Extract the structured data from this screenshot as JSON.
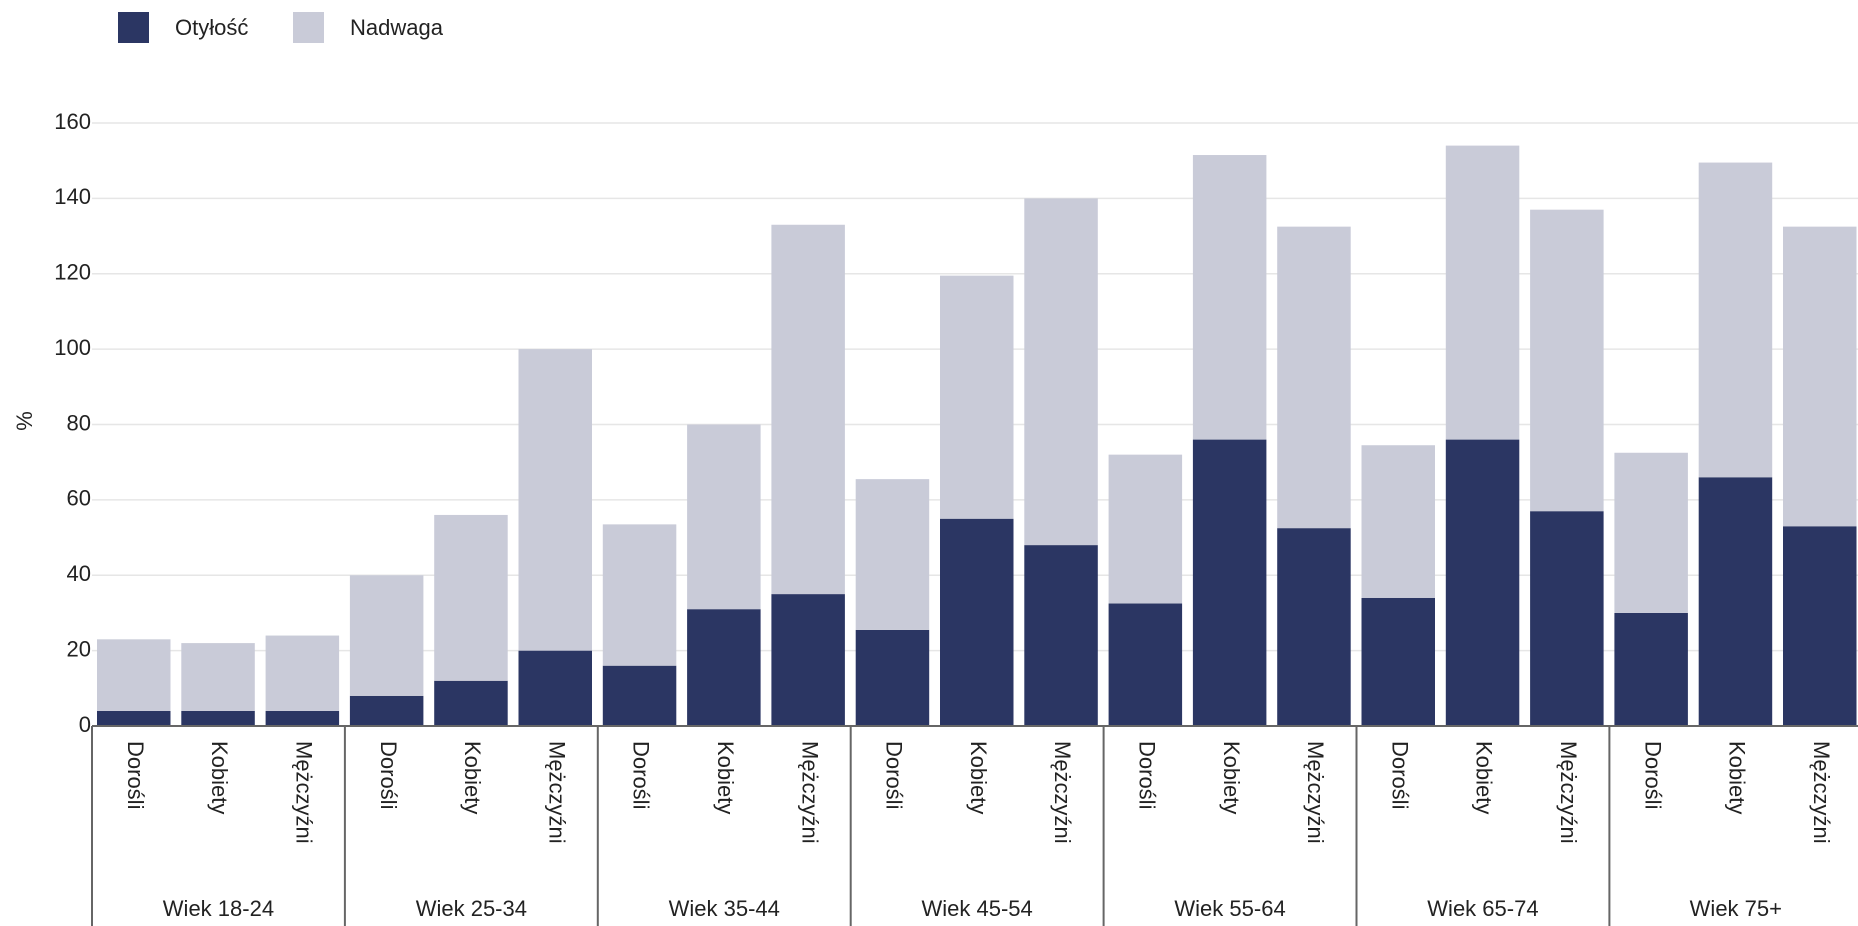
{
  "chart_data": {
    "type": "stacked_bar",
    "y_label": "%",
    "groups": [
      "Wiek 18-24",
      "Wiek 25-34",
      "Wiek 35-44",
      "Wiek 45-54",
      "Wiek 55-64",
      "Wiek 65-74",
      "Wiek 75+"
    ],
    "categories": [
      "Dorośli",
      "Kobiety",
      "Mężczyźni",
      "Dorośli",
      "Kobiety",
      "Mężczyźni",
      "Dorośli",
      "Kobiety",
      "Mężczyźni",
      "Dorośli",
      "Kobiety",
      "Mężczyźni",
      "Dorośli",
      "Kobiety",
      "Mężczyźni",
      "Dorośli",
      "Kobiety",
      "Mężczyźni",
      "Dorośli",
      "Kobiety",
      "Mężczyźni"
    ],
    "series": [
      {
        "name": "Otyłość",
        "color": "#2b3663",
        "values": [
          4,
          4,
          4,
          8,
          12,
          20,
          16,
          31,
          35,
          25.5,
          55,
          48,
          32.5,
          76,
          52.5,
          34,
          76,
          57,
          30,
          66,
          53
        ]
      },
      {
        "name": "Nadwaga",
        "color": "#c9cbd8",
        "values": [
          19,
          18,
          20,
          32,
          44,
          80,
          37.5,
          49,
          98,
          40,
          64.5,
          92,
          39.5,
          75.5,
          80,
          40.5,
          78,
          80,
          42.5,
          83.5,
          79.5
        ]
      }
    ],
    "ylim": [
      0,
      160
    ],
    "yticks": [
      0,
      20,
      40,
      60,
      80,
      100,
      120,
      140,
      160
    ],
    "grid": true,
    "legend": "top-left"
  }
}
